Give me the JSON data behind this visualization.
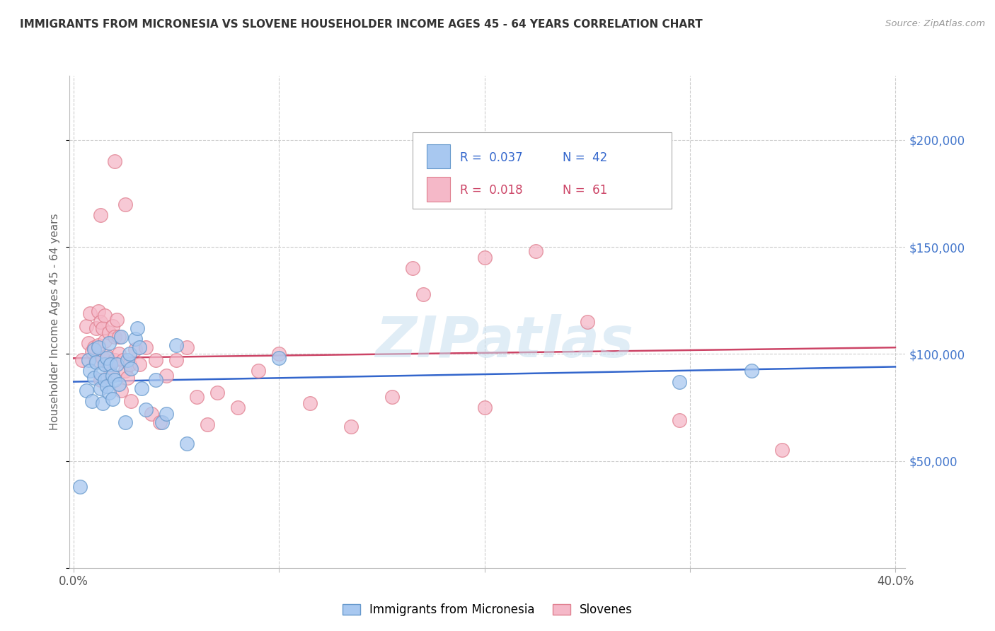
{
  "title": "IMMIGRANTS FROM MICRONESIA VS SLOVENE HOUSEHOLDER INCOME AGES 45 - 64 YEARS CORRELATION CHART",
  "source": "Source: ZipAtlas.com",
  "ylabel": "Householder Income Ages 45 - 64 years",
  "xlim": [
    -0.002,
    0.405
  ],
  "ylim": [
    0,
    230000
  ],
  "yticks": [
    50000,
    100000,
    150000,
    200000
  ],
  "ytick_labels": [
    "$50,000",
    "$100,000",
    "$150,000",
    "$200,000"
  ],
  "xticks": [
    0.0,
    0.1,
    0.2,
    0.3,
    0.4
  ],
  "xtick_labels": [
    "0.0%",
    "",
    "",
    "",
    "40.0%"
  ],
  "legend_blue_R": "0.037",
  "legend_blue_N": "42",
  "legend_pink_R": "0.018",
  "legend_pink_N": "61",
  "blue_series_label": "Immigrants from Micronesia",
  "pink_series_label": "Slovenes",
  "watermark": "ZIPatlas",
  "blue_color": "#a8c8f0",
  "blue_edge": "#6699cc",
  "pink_color": "#f5b8c8",
  "pink_edge": "#e08090",
  "blue_line_color": "#3366cc",
  "pink_line_color": "#cc4466",
  "title_color": "#333333",
  "source_color": "#999999",
  "right_tick_color": "#4477cc",
  "grid_color": "#cccccc",
  "blue_x": [
    0.003,
    0.006,
    0.007,
    0.008,
    0.009,
    0.01,
    0.01,
    0.011,
    0.012,
    0.013,
    0.013,
    0.014,
    0.015,
    0.015,
    0.016,
    0.016,
    0.017,
    0.017,
    0.018,
    0.019,
    0.019,
    0.02,
    0.021,
    0.022,
    0.023,
    0.025,
    0.026,
    0.027,
    0.028,
    0.03,
    0.031,
    0.032,
    0.033,
    0.035,
    0.04,
    0.043,
    0.045,
    0.05,
    0.055,
    0.1,
    0.295,
    0.33
  ],
  "blue_y": [
    38000,
    83000,
    97000,
    92000,
    78000,
    89000,
    102000,
    96000,
    103000,
    84000,
    91000,
    77000,
    88000,
    95000,
    98000,
    85000,
    105000,
    82000,
    95000,
    90000,
    79000,
    88000,
    95000,
    86000,
    108000,
    68000,
    97000,
    100000,
    93000,
    107000,
    112000,
    103000,
    84000,
    74000,
    88000,
    68000,
    72000,
    104000,
    58000,
    98000,
    87000,
    92000
  ],
  "pink_x": [
    0.004,
    0.006,
    0.007,
    0.008,
    0.009,
    0.01,
    0.011,
    0.011,
    0.012,
    0.012,
    0.013,
    0.013,
    0.014,
    0.014,
    0.015,
    0.015,
    0.016,
    0.017,
    0.017,
    0.018,
    0.019,
    0.02,
    0.02,
    0.021,
    0.022,
    0.022,
    0.023,
    0.024,
    0.025,
    0.026,
    0.027,
    0.028,
    0.03,
    0.032,
    0.035,
    0.038,
    0.04,
    0.042,
    0.045,
    0.05,
    0.055,
    0.06,
    0.065,
    0.07,
    0.08,
    0.09,
    0.1,
    0.115,
    0.135,
    0.155,
    0.17,
    0.2,
    0.225,
    0.25,
    0.295,
    0.165,
    0.02,
    0.013,
    0.025,
    0.345,
    0.2
  ],
  "pink_y": [
    97000,
    113000,
    105000,
    119000,
    101000,
    103000,
    112000,
    97000,
    104000,
    120000,
    115000,
    88000,
    112000,
    98000,
    118000,
    106000,
    99000,
    110000,
    94000,
    91000,
    113000,
    108000,
    97000,
    116000,
    100000,
    108000,
    83000,
    97000,
    92000,
    89000,
    95000,
    78000,
    102000,
    95000,
    103000,
    72000,
    97000,
    68000,
    90000,
    97000,
    103000,
    80000,
    67000,
    82000,
    75000,
    92000,
    100000,
    77000,
    66000,
    80000,
    128000,
    145000,
    148000,
    115000,
    69000,
    140000,
    190000,
    165000,
    170000,
    55000,
    75000
  ],
  "blue_trend_x": [
    0.0,
    0.4
  ],
  "blue_trend_y": [
    87000,
    94000
  ],
  "pink_trend_x": [
    0.0,
    0.4
  ],
  "pink_trend_y": [
    98000,
    103000
  ]
}
